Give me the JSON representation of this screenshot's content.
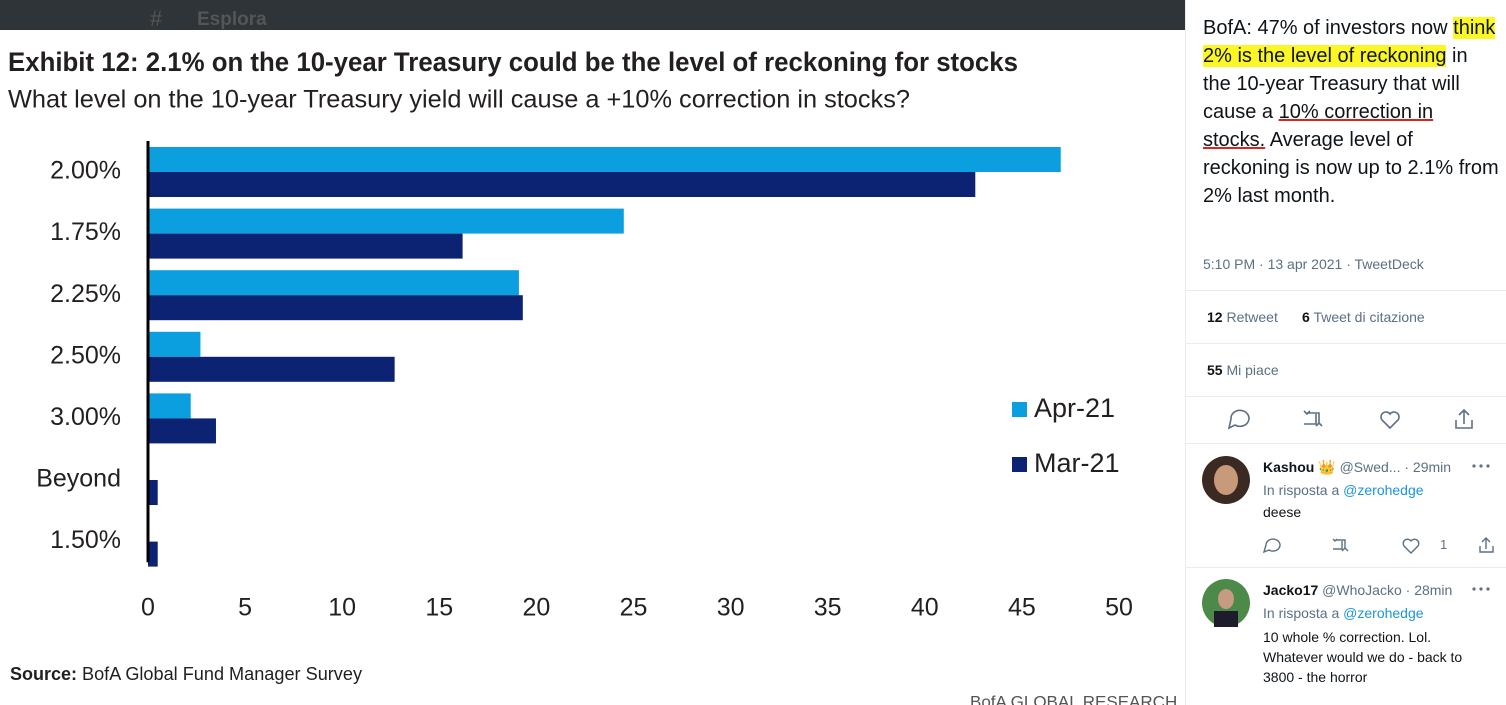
{
  "header": {
    "nav_label": "Esplora"
  },
  "chart_data": {
    "type": "bar",
    "orientation": "horizontal",
    "title": "Exhibit 12: 2.1% on the 10-year Treasury could be the level of reckoning for stocks",
    "subtitle": "What level on the 10-year Treasury yield will cause a +10% correction in stocks?",
    "categories": [
      "2.00%",
      "1.75%",
      "2.25%",
      "2.50%",
      "3.00%",
      "Beyond",
      "1.50%"
    ],
    "series": [
      {
        "name": "Apr-21",
        "color": "#0b9fdf",
        "values": [
          47.0,
          24.5,
          19.1,
          2.7,
          2.2,
          0,
          0
        ]
      },
      {
        "name": "Mar-21",
        "color": "#0c2272",
        "values": [
          42.6,
          16.2,
          19.3,
          12.7,
          3.5,
          0.5,
          0.5
        ]
      }
    ],
    "xlim": [
      0,
      50
    ],
    "xticks": [
      0,
      5,
      10,
      15,
      20,
      25,
      30,
      35,
      40,
      45,
      50
    ],
    "legend": "right",
    "source_label": "Source:",
    "source": "BofA Global Fund Manager Survey",
    "footer": "BofA GLOBAL RESEARCH"
  },
  "tweet": {
    "text_parts": [
      "BofA: 47% of investors now ",
      "think 2% is the level of reckoning",
      " in the 10-year Treasury that will cause a ",
      "10% correction in stocks.",
      " Average level of reckoning is now up to 2.1% from 2% last month."
    ],
    "timestamp": "5:10 PM · 13 apr 2021 · TweetDeck",
    "retweets": {
      "count": 12,
      "label": "Retweet"
    },
    "quotes": {
      "count": 6,
      "label": "Tweet di citazione"
    },
    "likes": {
      "count": 55,
      "label": "Mi piace"
    }
  },
  "replies": [
    {
      "name": "Kashou",
      "badge": "👑",
      "handle": "@Swed...",
      "time": "· 29min",
      "reply_to_label": "In risposta a",
      "reply_to": "@zerohedge",
      "text": "deese",
      "likes": 1
    },
    {
      "name": "Jacko17",
      "handle": "@WhoJacko",
      "time": "· 28min",
      "reply_to_label": "In risposta a",
      "reply_to": "@zerohedge",
      "text": "10 whole % correction. Lol. Whatever would we do - back to 3800 - the horror"
    }
  ]
}
